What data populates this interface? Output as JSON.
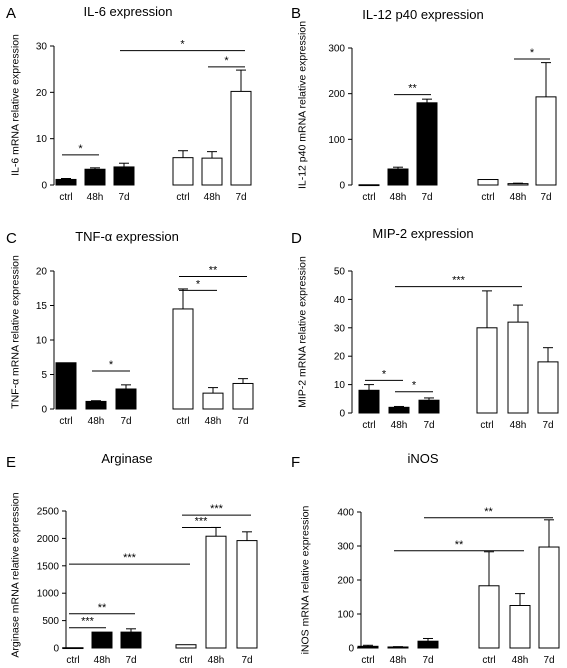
{
  "chart_data": [
    {
      "panel": "A",
      "type": "bar",
      "title": "IL-6 expression",
      "ylabel": "IL-6 mRNA relative expression",
      "categories": [
        "ctrl",
        "48h",
        "7d",
        "ctrl",
        "48h",
        "7d"
      ],
      "fills": [
        "black",
        "black",
        "black",
        "white",
        "white",
        "white"
      ],
      "values": [
        1.2,
        3.4,
        3.9,
        5.9,
        5.8,
        20.2
      ],
      "errors": [
        0.2,
        0.3,
        0.8,
        1.5,
        1.4,
        4.6
      ],
      "ylim": [
        0,
        30
      ],
      "yticks": [
        0,
        10,
        20,
        30
      ],
      "significance": [
        {
          "from": 0,
          "to": 1,
          "level": 6.5,
          "label": "*"
        },
        {
          "from": 4,
          "to": 5,
          "level": 25.5,
          "label": "*"
        },
        {
          "from": 2,
          "to": 5,
          "level": 29,
          "label": "*"
        }
      ]
    },
    {
      "panel": "B",
      "type": "bar",
      "title": "IL-12 p40 expression",
      "ylabel": "IL-12 p40 mRNA relative expression",
      "categories": [
        "ctrl",
        "48h",
        "7d",
        "ctrl",
        "48h",
        "7d"
      ],
      "fills": [
        "black",
        "black",
        "black",
        "white",
        "white",
        "white"
      ],
      "values": [
        0.5,
        35,
        180,
        12,
        3,
        193
      ],
      "errors": [
        0,
        4,
        8,
        0,
        1,
        75
      ],
      "ylim": [
        0,
        300
      ],
      "yticks": [
        0,
        100,
        200,
        300
      ],
      "significance": [
        {
          "from": 1,
          "to": 2,
          "level": 198,
          "label": "**"
        },
        {
          "from": 4,
          "to": 5,
          "level": 276,
          "label": "*"
        }
      ]
    },
    {
      "panel": "C",
      "type": "bar",
      "title": "TNF-α expression",
      "ylabel": "TNF-α mRNA relative expression",
      "categories": [
        "ctrl",
        "48h",
        "7d",
        "ctrl",
        "48h",
        "7d"
      ],
      "fills": [
        "black",
        "black",
        "black",
        "white",
        "white",
        "white"
      ],
      "values": [
        6.7,
        1.1,
        2.9,
        14.5,
        2.3,
        3.7
      ],
      "errors": [
        0,
        0.1,
        0.6,
        2.9,
        0.8,
        0.7
      ],
      "ylim": [
        0,
        20
      ],
      "yticks": [
        0,
        5,
        10,
        15,
        20
      ],
      "significance": [
        {
          "from": 1,
          "to": 2,
          "level": 5.5,
          "label": "*"
        },
        {
          "from": 3,
          "to": 4,
          "level": 17.2,
          "label": "*"
        },
        {
          "from": 3,
          "to": 5,
          "level": 19.2,
          "label": "**"
        }
      ]
    },
    {
      "panel": "D",
      "type": "bar",
      "title": "MIP-2 expression",
      "ylabel": "MIP-2 mRNA relative expression",
      "categories": [
        "ctrl",
        "48h",
        "7d",
        "ctrl",
        "48h",
        "7d"
      ],
      "fills": [
        "black",
        "black",
        "black",
        "white",
        "white",
        "white"
      ],
      "values": [
        8,
        2,
        4.5,
        30,
        32,
        18
      ],
      "errors": [
        2,
        0.3,
        0.8,
        13,
        6,
        5
      ],
      "ylim": [
        0,
        50
      ],
      "yticks": [
        0,
        10,
        20,
        30,
        40,
        50
      ],
      "significance": [
        {
          "from": 0,
          "to": 1,
          "level": 11.5,
          "label": "*"
        },
        {
          "from": 1,
          "to": 2,
          "level": 7.5,
          "label": "*"
        },
        {
          "from": 1,
          "to": 4,
          "level": 44.5,
          "label": "***"
        }
      ]
    },
    {
      "panel": "E",
      "type": "bar",
      "title": "Arginase",
      "ylabel": "Arginase mRNA relative expression",
      "categories": [
        "ctrl",
        "48h",
        "7d",
        "ctrl",
        "48h",
        "7d"
      ],
      "fills": [
        "black",
        "black",
        "black",
        "white",
        "white",
        "white"
      ],
      "values": [
        5,
        290,
        290,
        60,
        2040,
        1960
      ],
      "errors": [
        0,
        0,
        60,
        0,
        160,
        160
      ],
      "ylim": [
        0,
        2500
      ],
      "yticks": [
        0,
        500,
        1000,
        1500,
        2000,
        2500
      ],
      "significance": [
        {
          "from": 0,
          "to": 1,
          "level": 370,
          "label": "***"
        },
        {
          "from": 0,
          "to": 2,
          "level": 625,
          "label": "**"
        },
        {
          "from": 0,
          "to": 3,
          "level": 1530,
          "label": "***"
        },
        {
          "from": 3,
          "to": 4,
          "level": 2200,
          "label": "***"
        },
        {
          "from": 3,
          "to": 5,
          "level": 2425,
          "label": "***"
        }
      ]
    },
    {
      "panel": "F",
      "type": "bar",
      "title": "iNOS",
      "ylabel": "iNOS mRNA relative expression",
      "categories": [
        "ctrl",
        "48h",
        "7d",
        "ctrl",
        "48h",
        "7d"
      ],
      "fills": [
        "black",
        "black",
        "black",
        "white",
        "white",
        "white"
      ],
      "values": [
        5,
        3,
        20,
        183,
        125,
        297
      ],
      "errors": [
        3,
        1,
        8,
        100,
        35,
        80
      ],
      "ylim": [
        0,
        400
      ],
      "yticks": [
        0,
        100,
        200,
        300,
        400
      ],
      "significance": [
        {
          "from": 1,
          "to": 4,
          "level": 286,
          "label": "**"
        },
        {
          "from": 2,
          "to": 5,
          "level": 383,
          "label": "**"
        }
      ]
    }
  ]
}
